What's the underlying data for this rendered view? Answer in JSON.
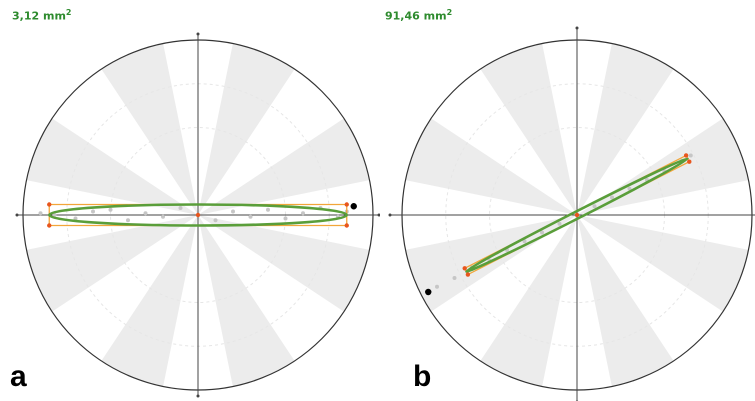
{
  "chart_data": [
    {
      "type": "scatter",
      "panel_label": "a",
      "area_value": "3,12",
      "area_unit": "mm",
      "area_exponent": "2",
      "ellipse_angle_deg": 0,
      "ellipse_semi_major": 0.85,
      "ellipse_semi_minor": 0.06,
      "colors": {
        "ellipse": "#5a9e3a",
        "bbox": "#f2a63a",
        "corner": "#e8561e",
        "points": "#c6c6c6",
        "sector": "#ececec",
        "circle": "#333333"
      },
      "points_sample": [
        [
          -0.9,
          0.01
        ],
        [
          -0.82,
          0.0
        ],
        [
          -0.7,
          -0.02
        ],
        [
          -0.6,
          0.02
        ],
        [
          -0.5,
          0.03
        ],
        [
          -0.4,
          -0.03
        ],
        [
          -0.3,
          0.01
        ],
        [
          -0.2,
          -0.01
        ],
        [
          -0.1,
          0.04
        ],
        [
          0.0,
          0.0
        ],
        [
          0.1,
          -0.03
        ],
        [
          0.2,
          0.02
        ],
        [
          0.3,
          -0.01
        ],
        [
          0.4,
          0.03
        ],
        [
          0.5,
          -0.02
        ],
        [
          0.6,
          0.01
        ],
        [
          0.7,
          0.04
        ],
        [
          0.8,
          -0.01
        ],
        [
          0.85,
          0.02
        ]
      ],
      "marker_point": [
        0.89,
        0.05
      ]
    },
    {
      "type": "scatter",
      "panel_label": "b",
      "area_value": "91,46",
      "area_unit": "mm",
      "area_exponent": "2",
      "ellipse_angle_deg": 27,
      "ellipse_semi_major": 0.71,
      "ellipse_semi_minor": 0.02,
      "colors": {
        "ellipse": "#5a9e3a",
        "bbox": "#f2a63a",
        "corner": "#e8561e",
        "points": "#c6c6c6",
        "sector": "#ececec",
        "circle": "#333333"
      },
      "points_sample": [
        [
          -0.8,
          -0.41
        ],
        [
          -0.7,
          -0.36
        ],
        [
          -0.6,
          -0.3
        ],
        [
          -0.5,
          -0.26
        ],
        [
          -0.4,
          -0.2
        ],
        [
          -0.3,
          -0.15
        ],
        [
          -0.2,
          -0.1
        ],
        [
          -0.1,
          -0.05
        ],
        [
          0.0,
          0.0
        ],
        [
          0.1,
          0.05
        ],
        [
          0.2,
          0.1
        ],
        [
          0.3,
          0.15
        ],
        [
          0.4,
          0.2
        ],
        [
          0.5,
          0.25
        ],
        [
          0.6,
          0.31
        ],
        [
          0.65,
          0.34
        ]
      ],
      "marker_point": [
        -0.85,
        -0.44
      ]
    }
  ]
}
